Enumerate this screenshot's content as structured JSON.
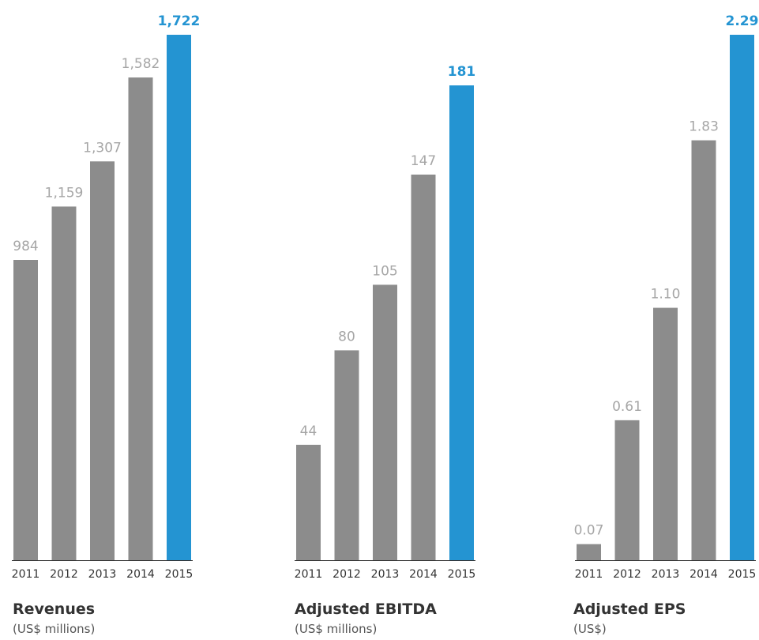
{
  "colors": {
    "bar": "#8c8c8c",
    "highlight_bar": "#2494d2",
    "value_label": "#a6a6a6",
    "highlight_label": "#2494d2",
    "tick_label": "#333333",
    "axis_line": "#333333"
  },
  "chart_data": [
    {
      "type": "bar",
      "title": "Revenues",
      "subtitle": "(US$ millions)",
      "categories": [
        "2011",
        "2012",
        "2013",
        "2014",
        "2015"
      ],
      "values": [
        984,
        1159,
        1307,
        1582,
        1722
      ],
      "value_labels": [
        "984",
        "1,159",
        "1,307",
        "1,582",
        "1,722"
      ],
      "highlight_index": 4,
      "ylim": [
        0,
        1722
      ]
    },
    {
      "type": "bar",
      "title": "Adjusted EBITDA",
      "subtitle": "(US$ millions)",
      "categories": [
        "2011",
        "2012",
        "2013",
        "2014",
        "2015"
      ],
      "values": [
        44,
        80,
        105,
        147,
        181
      ],
      "value_labels": [
        "44",
        "80",
        "105",
        "147",
        "181"
      ],
      "highlight_index": 4,
      "ylim": [
        0,
        200
      ]
    },
    {
      "type": "bar",
      "title": "Adjusted EPS",
      "subtitle": "(US$)",
      "categories": [
        "2011",
        "2012",
        "2013",
        "2014",
        "2015"
      ],
      "values": [
        0.07,
        0.61,
        1.1,
        1.83,
        2.29
      ],
      "value_labels": [
        "0.07",
        "0.61",
        "1.10",
        "1.83",
        "2.29"
      ],
      "highlight_index": 4,
      "ylim": [
        0,
        2.29
      ]
    }
  ]
}
